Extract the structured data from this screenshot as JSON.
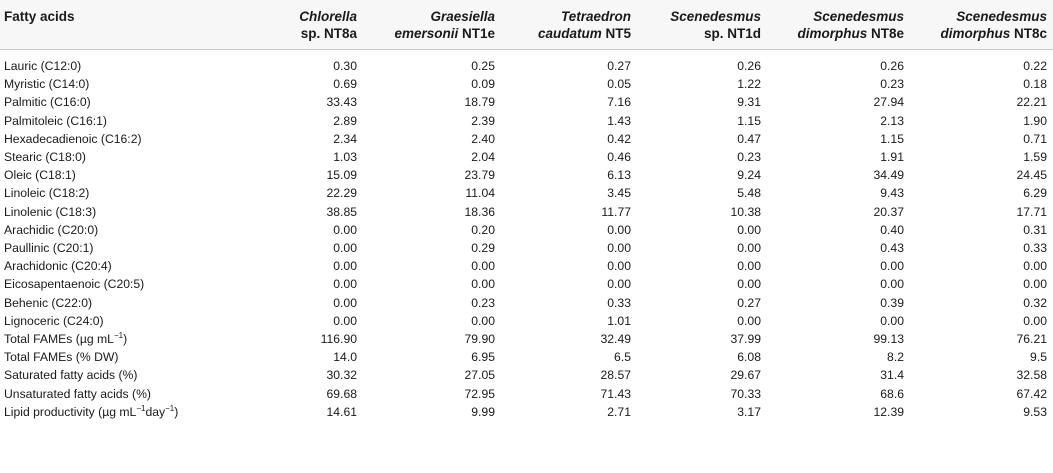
{
  "table": {
    "headers": [
      {
        "lines": [
          "Fatty acids"
        ],
        "italic": [
          false
        ]
      },
      {
        "lines": [
          "Chlorella",
          "sp. NT8a"
        ],
        "italic": [
          true,
          false
        ]
      },
      {
        "lines": [
          "Graesiella",
          "emersonii NT1e"
        ],
        "italic": [
          true,
          "emersonii"
        ]
      },
      {
        "lines": [
          "Tetraedron",
          "caudatum NT5"
        ],
        "italic": [
          true,
          "caudatum"
        ]
      },
      {
        "lines": [
          "Scenedesmus",
          "sp. NT1d"
        ],
        "italic": [
          true,
          false
        ]
      },
      {
        "lines": [
          "Scenedesmus",
          "dimorphus NT8e"
        ],
        "italic": [
          true,
          "dimorphus"
        ]
      },
      {
        "lines": [
          "Scenedesmus",
          "dimorphus NT8c"
        ],
        "italic": [
          true,
          "dimorphus"
        ]
      }
    ],
    "rows": [
      {
        "label": "Lauric (C12:0)",
        "values": [
          "0.30",
          "0.25",
          "0.27",
          "0.26",
          "0.26",
          "0.22"
        ]
      },
      {
        "label": "Myristic (C14:0)",
        "values": [
          "0.69",
          "0.09",
          "0.05",
          "1.22",
          "0.23",
          "0.18"
        ]
      },
      {
        "label": "Palmitic (C16:0)",
        "values": [
          "33.43",
          "18.79",
          "7.16",
          "9.31",
          "27.94",
          "22.21"
        ]
      },
      {
        "label": "Palmitoleic (C16:1)",
        "values": [
          "2.89",
          "2.39",
          "1.43",
          "1.15",
          "2.13",
          "1.90"
        ]
      },
      {
        "label": "Hexadecadienoic (C16:2)",
        "values": [
          "2.34",
          "2.40",
          "0.42",
          "0.47",
          "1.15",
          "0.71"
        ]
      },
      {
        "label": "Stearic (C18:0)",
        "values": [
          "1.03",
          "2.04",
          "0.46",
          "0.23",
          "1.91",
          "1.59"
        ]
      },
      {
        "label": "Oleic (C18:1)",
        "values": [
          "15.09",
          "23.79",
          "6.13",
          "9.24",
          "34.49",
          "24.45"
        ]
      },
      {
        "label": "Linoleic (C18:2)",
        "values": [
          "22.29",
          "11.04",
          "3.45",
          "5.48",
          "9.43",
          "6.29"
        ]
      },
      {
        "label": "Linolenic (C18:3)",
        "values": [
          "38.85",
          "18.36",
          "11.77",
          "10.38",
          "20.37",
          "17.71"
        ]
      },
      {
        "label": "Arachidic (C20:0)",
        "values": [
          "0.00",
          "0.20",
          "0.00",
          "0.00",
          "0.40",
          "0.31"
        ]
      },
      {
        "label": "Paullinic (C20:1)",
        "values": [
          "0.00",
          "0.29",
          "0.00",
          "0.00",
          "0.43",
          "0.33"
        ]
      },
      {
        "label": "Arachidonic (C20:4)",
        "values": [
          "0.00",
          "0.00",
          "0.00",
          "0.00",
          "0.00",
          "0.00"
        ]
      },
      {
        "label": "Eicosapentaenoic (C20:5)",
        "values": [
          "0.00",
          "0.00",
          "0.00",
          "0.00",
          "0.00",
          "0.00"
        ]
      },
      {
        "label": "Behenic (C22:0)",
        "values": [
          "0.00",
          "0.23",
          "0.33",
          "0.27",
          "0.39",
          "0.32"
        ]
      },
      {
        "label": "Lignoceric (C24:0)",
        "values": [
          "0.00",
          "0.00",
          "1.01",
          "0.00",
          "0.00",
          "0.00"
        ]
      },
      {
        "label": "Total FAMEs (µg mL",
        "sup": "−1",
        "suffix": ")",
        "values": [
          "116.90",
          "79.90",
          "32.49",
          "37.99",
          "99.13",
          "76.21"
        ]
      },
      {
        "label": "Total FAMEs (% DW)",
        "values": [
          "14.0",
          "6.95",
          "6.5",
          "6.08",
          "8.2",
          "9.5"
        ]
      },
      {
        "label": "Saturated fatty acids (%)",
        "values": [
          "30.32",
          "27.05",
          "28.57",
          "29.67",
          "31.4",
          "32.58"
        ]
      },
      {
        "label": "Unsaturated fatty acids (%)",
        "values": [
          "69.68",
          "72.95",
          "71.43",
          "70.33",
          "68.6",
          "67.42"
        ]
      },
      {
        "label": "Lipid productivity (µg mL",
        "sup": "−1",
        "mid": "day",
        "sup2": "−1",
        "suffix": ")",
        "values": [
          "14.61",
          "9.99",
          "2.71",
          "3.17",
          "12.39",
          "9.53"
        ]
      }
    ]
  }
}
